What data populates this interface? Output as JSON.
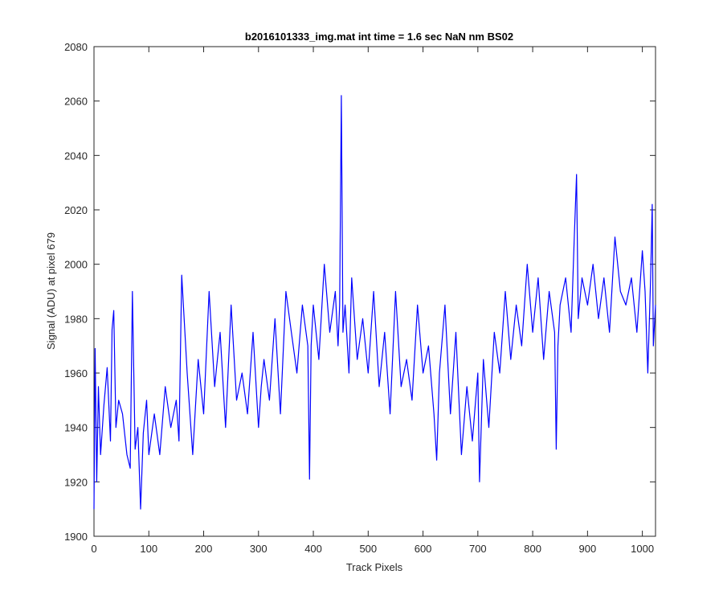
{
  "colors": {
    "line": "#0000ff",
    "axis": "#262626",
    "background": "#ffffff"
  },
  "chart_data": {
    "type": "line",
    "title": "b2016101333_img.mat int time = 1.6 sec  NaN nm BS02",
    "xlabel": "Track Pixels",
    "ylabel": "Signal (ADU) at pixel 679",
    "xlim": [
      0,
      1024
    ],
    "ylim": [
      1900,
      2080
    ],
    "xticks": [
      0,
      100,
      200,
      300,
      400,
      500,
      600,
      700,
      800,
      900,
      1000
    ],
    "yticks": [
      1900,
      1920,
      1940,
      1960,
      1980,
      2000,
      2020,
      2040,
      2060,
      2080
    ],
    "grid": false,
    "legend": "none",
    "series": [
      {
        "x": [
          0,
          2,
          5,
          8,
          12,
          18,
          24,
          30,
          33,
          36,
          40,
          45,
          52,
          60,
          66,
          70,
          75,
          80,
          85,
          90,
          96,
          100,
          110,
          120,
          130,
          140,
          150,
          155,
          160,
          170,
          180,
          190,
          200,
          210,
          220,
          230,
          240,
          250,
          260,
          270,
          280,
          290,
          300,
          305,
          310,
          320,
          330,
          340,
          350,
          360,
          370,
          380,
          390,
          393,
          396,
          400,
          410,
          420,
          430,
          440,
          445,
          448,
          451,
          454,
          458,
          465,
          470,
          480,
          490,
          500,
          510,
          520,
          530,
          540,
          550,
          560,
          570,
          580,
          590,
          600,
          610,
          620,
          625,
          630,
          640,
          650,
          660,
          670,
          680,
          690,
          700,
          703,
          710,
          720,
          730,
          740,
          750,
          760,
          770,
          780,
          790,
          800,
          810,
          820,
          830,
          840,
          843,
          846,
          850,
          860,
          870,
          876,
          880,
          883,
          890,
          900,
          910,
          920,
          930,
          940,
          950,
          960,
          970,
          980,
          990,
          1000,
          1005,
          1010,
          1015,
          1018,
          1020,
          1024
        ],
        "y": [
          1910,
          1969,
          1920,
          1955,
          1930,
          1948,
          1962,
          1935,
          1976,
          1983,
          1940,
          1950,
          1945,
          1930,
          1925,
          1990,
          1932,
          1940,
          1910,
          1938,
          1950,
          1930,
          1945,
          1930,
          1955,
          1940,
          1950,
          1935,
          1996,
          1960,
          1930,
          1965,
          1945,
          1990,
          1955,
          1975,
          1940,
          1985,
          1950,
          1960,
          1945,
          1975,
          1940,
          1955,
          1965,
          1950,
          1980,
          1945,
          1990,
          1975,
          1960,
          1985,
          1970,
          1921,
          1970,
          1985,
          1965,
          2000,
          1975,
          1990,
          1970,
          1985,
          2062,
          1975,
          1985,
          1960,
          1995,
          1965,
          1980,
          1960,
          1990,
          1955,
          1975,
          1945,
          1990,
          1955,
          1965,
          1950,
          1985,
          1960,
          1970,
          1945,
          1928,
          1960,
          1985,
          1945,
          1975,
          1930,
          1955,
          1935,
          1960,
          1920,
          1965,
          1940,
          1975,
          1960,
          1990,
          1965,
          1985,
          1970,
          2000,
          1975,
          1995,
          1965,
          1990,
          1975,
          1932,
          1970,
          1985,
          1995,
          1975,
          2011,
          2033,
          1980,
          1995,
          1985,
          2000,
          1980,
          1995,
          1975,
          2010,
          1990,
          1985,
          1995,
          1975,
          2005,
          1990,
          1960,
          1995,
          2022,
          1970,
          1985
        ]
      }
    ]
  }
}
